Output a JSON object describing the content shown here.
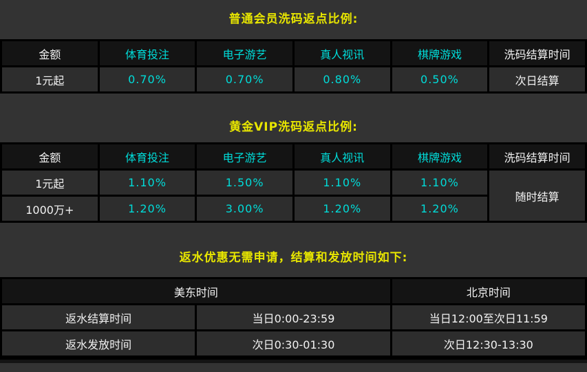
{
  "colors": {
    "page_background": "#333333",
    "title_yellow": "#e8e600",
    "value_cyan": "#00dcd9",
    "label_white": "#f2f2f2",
    "header_cell_bg": "#141414",
    "data_cell_bg": "#2d2d2d",
    "table_border": "#000000"
  },
  "sections": {
    "regular": {
      "title": "普通会员洗码返点比例:",
      "table": {
        "headers": [
          "金额",
          "体育投注",
          "电子游艺",
          "真人视讯",
          "棋牌游戏",
          "洗码结算时间"
        ],
        "rows": [
          [
            "1元起",
            "0.70%",
            "0.70%",
            "0.80%",
            "0.50%",
            "次日结算"
          ]
        ]
      }
    },
    "gold_vip": {
      "title": "黄金VIP洗码返点比例:",
      "table": {
        "headers": [
          "金额",
          "体育投注",
          "电子游艺",
          "真人视讯",
          "棋牌游戏",
          "洗码结算时间"
        ],
        "rows": [
          [
            "1元起",
            "1.10%",
            "1.50%",
            "1.10%",
            "1.10%"
          ],
          [
            "1000万+",
            "1.20%",
            "3.00%",
            "1.20%",
            "1.20%"
          ]
        ],
        "settlement": "随时结算"
      }
    },
    "rebate_schedule": {
      "title": "返水优惠无需申请，结算和发放时间如下:",
      "table": {
        "headers": [
          "美东时间",
          "北京时间"
        ],
        "rows": [
          [
            "返水结算时间",
            "当日0:00-23:59",
            "当日12:00至次日11:59"
          ],
          [
            "返水发放时间",
            "次日0:30-01:30",
            "次日12:30-13:30"
          ]
        ]
      }
    }
  }
}
